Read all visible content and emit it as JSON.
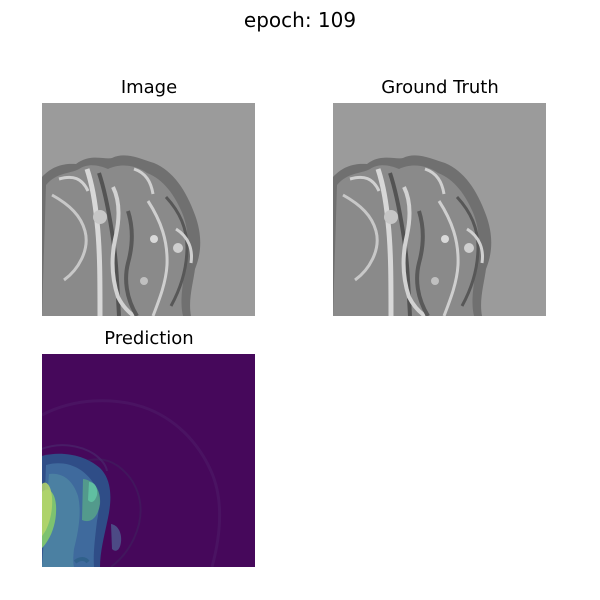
{
  "figure": {
    "suptitle": "epoch: 109"
  },
  "panels": [
    {
      "title": "Image",
      "icon": "brain-mri-grayscale-icon"
    },
    {
      "title": "Ground Truth",
      "icon": "brain-mri-grayscale-icon"
    },
    {
      "title": "Prediction",
      "icon": "prediction-heatmap-icon"
    }
  ],
  "colors": {
    "background": "#ffffff",
    "mri_background": "#9b9b9b",
    "mri_dark": "#5f5f5f",
    "mri_light": "#d6d6d6",
    "heatmap_dark": "#46085b",
    "heatmap_mid": "#3b4e8f",
    "heatmap_light": "#63c28b"
  }
}
